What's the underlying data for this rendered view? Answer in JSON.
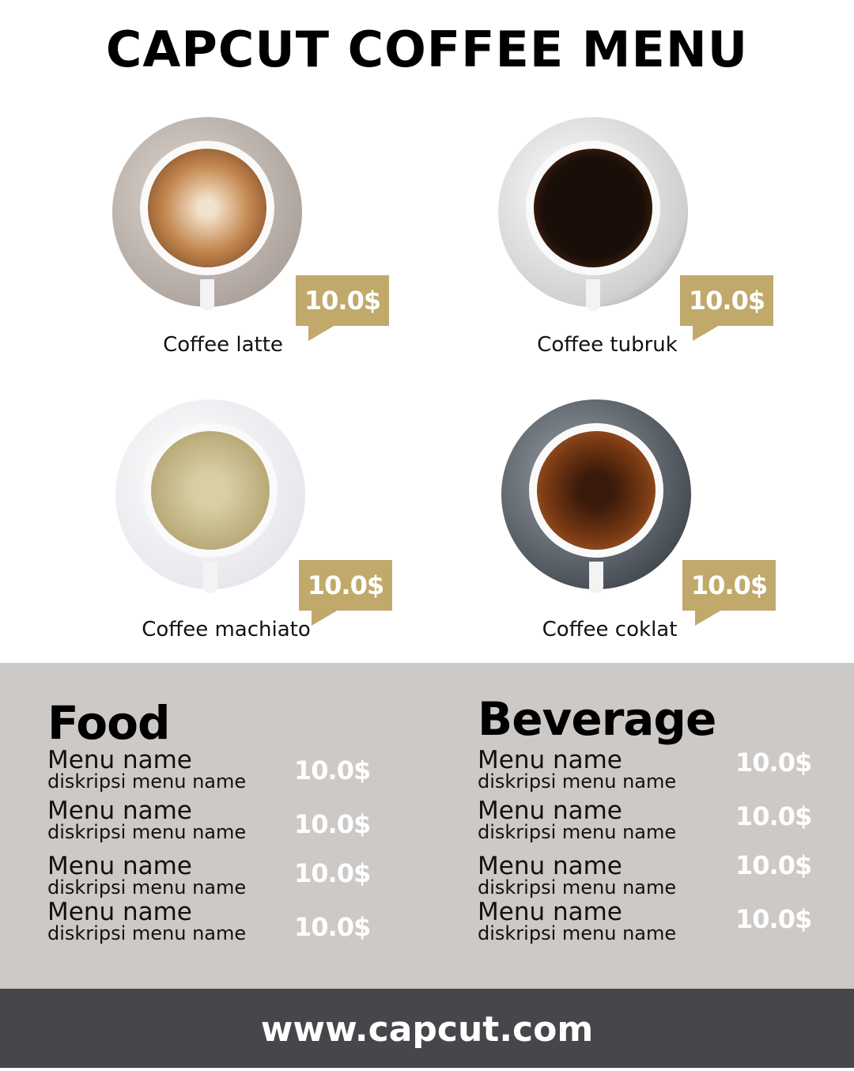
{
  "title": "CAPCUT COFFEE MENU",
  "products": [
    {
      "name": "Coffee latte",
      "price": "10.0$"
    },
    {
      "name": "Coffee tubruk",
      "price": "10.0$"
    },
    {
      "name": "Coffee machiato",
      "price": "10.0$"
    },
    {
      "name": "Coffee coklat",
      "price": "10.0$"
    }
  ],
  "food": {
    "heading": "Food",
    "items": [
      {
        "name": "Menu name",
        "desc": "diskripsi menu name",
        "price": "10.0$"
      },
      {
        "name": "Menu name",
        "desc": "diskripsi menu name",
        "price": "10.0$"
      },
      {
        "name": "Menu name",
        "desc": "diskripsi menu name",
        "price": "10.0$"
      },
      {
        "name": "Menu name",
        "desc": "diskripsi menu name",
        "price": "10.0$"
      }
    ]
  },
  "beverage": {
    "heading": "Beverage",
    "items": [
      {
        "name": "Menu name",
        "desc": "diskripsi menu name",
        "price": "10.0$"
      },
      {
        "name": "Menu name",
        "desc": "diskripsi menu name",
        "price": "10.0$"
      },
      {
        "name": "Menu name",
        "desc": "diskripsi menu name",
        "price": "10.0$"
      },
      {
        "name": "Menu name",
        "desc": "diskripsi menu name",
        "price": "10.0$"
      }
    ]
  },
  "footer": "www.capcut.com",
  "colors": {
    "accent": "#c0a96a",
    "panel": "#cdc9c6",
    "footer": "#47464b"
  }
}
